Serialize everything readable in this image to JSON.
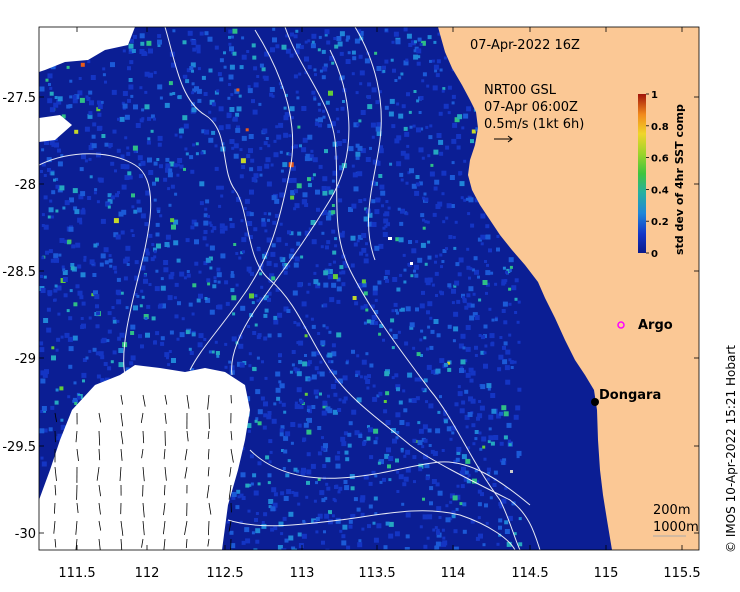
{
  "map": {
    "date_label": "07-Apr-2022 16Z",
    "current_source": "NRT00 GSL",
    "current_time": "07-Apr 06:00Z",
    "current_scale": "0.5m/s (1kt 6h)",
    "colorbar": {
      "label": "std dev of 4hr SST comp",
      "ticks": [
        "0",
        "0.2",
        "0.4",
        "0.6",
        "0.8",
        "1"
      ],
      "range": [
        0,
        1
      ]
    },
    "x_ticks": [
      "111.5",
      "112",
      "112.5",
      "113",
      "113.5",
      "114",
      "114.5",
      "115",
      "115.5"
    ],
    "y_ticks": [
      "-27.5",
      "-28",
      "-28.5",
      "-29",
      "-29.5",
      "-30"
    ],
    "places": [
      {
        "name": "Argo",
        "lon": 115.05,
        "lat": -28.83,
        "marker": "argo-float"
      },
      {
        "name": "Dongara",
        "lon": 114.93,
        "lat": -29.25,
        "marker": "town"
      }
    ],
    "isobaths": [
      "200m",
      "1000m"
    ],
    "credit": "© IMOS 10-Apr-2022 15:21 Hobart",
    "colors": {
      "ocean_low": "#0a1f9a",
      "land": "#fbc895",
      "cloud": "#ffffff",
      "argo_marker": "#ff00ff"
    }
  }
}
